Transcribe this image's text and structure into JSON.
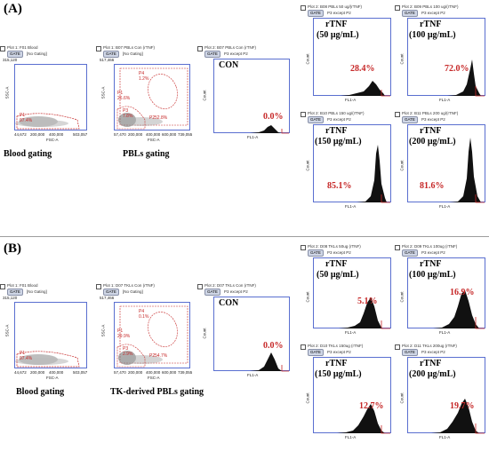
{
  "panels": {
    "a": {
      "letter": "(A)",
      "blood": {
        "plot_title": "Plot 1: F01 Blood",
        "gate_badge": "GATE",
        "gate_text": "[No Gating]",
        "y_axis": "SSC-A",
        "x_axis": "FSC-A",
        "y_ticks": [
          "315,120"
        ],
        "x_ticks": [
          "44,672",
          "200,000",
          "400,000",
          "500,000",
          "503,057"
        ],
        "gate_label": "P1",
        "gate_pct": "97.4%",
        "caption": "Blood gating"
      },
      "pbls": {
        "plot_title": "Plot 1: B07 PBLs Con (rTNF)",
        "gate_badge": "GATE",
        "gate_text": "[No Gating]",
        "y_axis": "SSC-A",
        "x_axis": "FSC-A",
        "y_ticks": [
          "517,466"
        ],
        "x_ticks": [
          "57,470",
          "200,000",
          "400,000",
          "600,000",
          "739,055"
        ],
        "gates": [
          {
            "label": "P4",
            "pct": "1.2%"
          },
          {
            "label": "P1",
            "pct": "26.6%"
          },
          {
            "label": "P3",
            "pct": "7.8%"
          },
          {
            "label": "P2",
            "pct": "52.8%"
          }
        ],
        "caption": "PBLs gating"
      },
      "con": {
        "plot_title": "Plot 2: B07 PBLs Con (rTNF)",
        "gate_badge": "GATE",
        "gate_text": "P3 except P2",
        "label": "CON",
        "pct": "0.0%",
        "y_axis": "Count",
        "x_axis": "FL1-A"
      },
      "histos": [
        {
          "plot_title": "Plot 2: B08 PBLs 50 ug/(rTNF)",
          "gate_badge": "GATE",
          "gate_text": "P3 except P2",
          "cond_line1": "rTNF",
          "cond_line2": "(50 μg/mL)",
          "pct": "28.4%",
          "y_axis": "Count",
          "x_axis": "FL1-A"
        },
        {
          "plot_title": "Plot 2: B09 PBLs 100 ug/(rTNF)",
          "gate_badge": "GATE",
          "gate_text": "P3 except P2",
          "cond_line1": "rTNF",
          "cond_line2": "(100 μg/mL)",
          "pct": "72.0%",
          "y_axis": "Count",
          "x_axis": "FL1-A"
        },
        {
          "plot_title": "Plot 2: B10 PBLs 150 ug/(rTNF)",
          "gate_badge": "GATE",
          "gate_text": "P3 except P2",
          "cond_line1": "rTNF",
          "cond_line2": "(150 μg/mL)",
          "pct": "85.1%",
          "y_axis": "Count",
          "x_axis": "FL1-A"
        },
        {
          "plot_title": "Plot 2: B11 PBLs 200 ug/(rTNF)",
          "gate_badge": "GATE",
          "gate_text": "P3 except P2",
          "cond_line1": "rTNF",
          "cond_line2": "(200 μg/mL)",
          "pct": "81.6%",
          "y_axis": "Count",
          "x_axis": "FL1-A"
        }
      ]
    },
    "b": {
      "letter": "(B)",
      "blood": {
        "plot_title": "Plot 1: F01 Blood",
        "gate_badge": "GATE",
        "gate_text": "[No Gating]",
        "y_axis": "SSC-A",
        "x_axis": "FSC-A",
        "y_ticks": [
          "315,120"
        ],
        "x_ticks": [
          "44,672",
          "200,000",
          "400,000",
          "500,000",
          "503,057"
        ],
        "gate_label": "P1",
        "gate_pct": "97.4%",
        "caption": "Blood gating"
      },
      "pbls": {
        "plot_title": "Plot 1: D07 TKLs Con (rTNF)",
        "gate_badge": "GATE",
        "gate_text": "[No Gating]",
        "y_axis": "SSC-A",
        "x_axis": "FSC-A",
        "y_ticks": [
          "517,466"
        ],
        "x_ticks": [
          "57,470",
          "200,000",
          "400,000",
          "600,000",
          "739,055"
        ],
        "gates": [
          {
            "label": "P4",
            "pct": "0.1%"
          },
          {
            "label": "P1",
            "pct": "29.9%"
          },
          {
            "label": "P3",
            "pct": "2.9%"
          },
          {
            "label": "P2",
            "pct": "54.7%"
          }
        ],
        "caption": "TK-derived PBLs gating"
      },
      "con": {
        "plot_title": "Plot 2: D07 TKLs Con (rTNF)",
        "gate_badge": "GATE",
        "gate_text": "P3 except P2",
        "label": "CON",
        "pct": "0.0%",
        "y_axis": "Count",
        "x_axis": "FL1-A"
      },
      "histos": [
        {
          "plot_title": "Plot 2: D08 TKLs 50ug (rTNF)",
          "gate_badge": "GATE",
          "gate_text": "P3 except P2",
          "cond_line1": "rTNF",
          "cond_line2": "(50 μg/mL)",
          "pct": "5.1%",
          "y_axis": "Count",
          "x_axis": "FL1-A"
        },
        {
          "plot_title": "Plot 2: D09 TKLs 100ug (rTNF)",
          "gate_badge": "GATE",
          "gate_text": "P3 except P2",
          "cond_line1": "rTNF",
          "cond_line2": "(100 μg/mL)",
          "pct": "16.9%",
          "y_axis": "Count",
          "x_axis": "FL1-A"
        },
        {
          "plot_title": "Plot 2: D10 TKLs 150ug (rTNF)",
          "gate_badge": "GATE",
          "gate_text": "P3 except P2",
          "cond_line1": "rTNF",
          "cond_line2": "(150 μg/mL)",
          "pct": "12.7%",
          "y_axis": "Count",
          "x_axis": "FL1-A"
        },
        {
          "plot_title": "Plot 2: D11 TKLs 200ug (rTNF)",
          "gate_badge": "GATE",
          "gate_text": "P3 except P2",
          "cond_line1": "rTNF",
          "cond_line2": "(200 μg/mL)",
          "pct": "19.7%",
          "y_axis": "Count",
          "x_axis": "FL1-A"
        }
      ]
    }
  },
  "colors": {
    "frame": "#5a6fd0",
    "gate_line": "#c62828",
    "percent": "#c62828",
    "histogram": "#000000"
  }
}
